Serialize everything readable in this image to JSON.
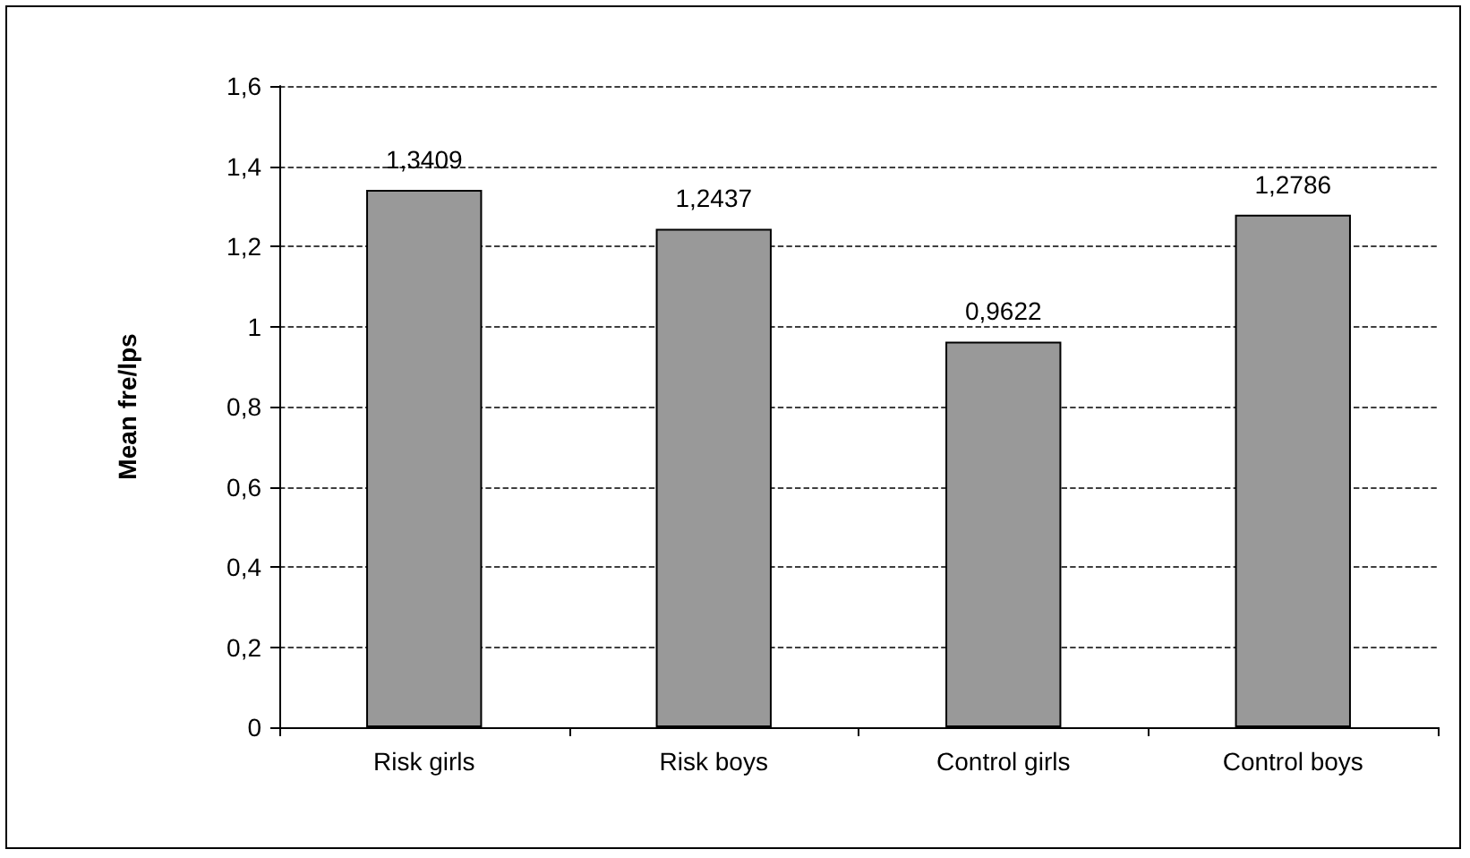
{
  "chart_data": {
    "type": "bar",
    "ylabel": "Mean fre/lps",
    "categories": [
      "Risk girls",
      "Risk boys",
      "Control girls",
      "Control boys"
    ],
    "values": [
      1.3409,
      1.2437,
      0.9622,
      1.2786
    ],
    "value_labels": [
      "1,3409",
      "1,2437",
      "0,9622",
      "1,2786"
    ],
    "color": "#999999",
    "ylim": [
      0,
      1.6
    ],
    "yticks": [
      {
        "value": 0,
        "label": "0"
      },
      {
        "value": 0.2,
        "label": "0,2"
      },
      {
        "value": 0.4,
        "label": "0,4"
      },
      {
        "value": 0.6,
        "label": "0,6"
      },
      {
        "value": 0.8,
        "label": "0,8"
      },
      {
        "value": 1,
        "label": "1"
      },
      {
        "value": 1.2,
        "label": "1,2"
      },
      {
        "value": 1.4,
        "label": "1,4"
      },
      {
        "value": 1.6,
        "label": "1,6"
      }
    ],
    "grid": "y"
  }
}
